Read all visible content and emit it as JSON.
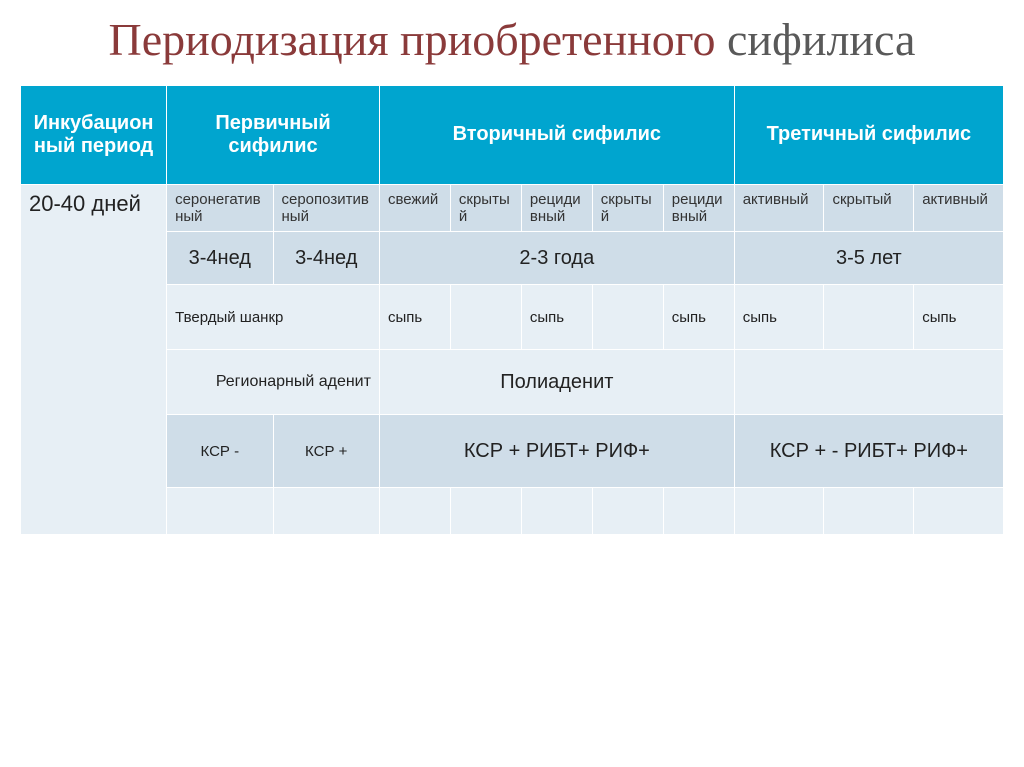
{
  "title": {
    "accent": "Периодизация приобретенного",
    "plain": "сифилиса"
  },
  "header": {
    "incubation": "Инкубационный период",
    "primary": "Первичный сифилис",
    "secondary": "Вторичный сифилис",
    "tertiary": "Третичный сифилис"
  },
  "row_days": {
    "incubation": "20-40 дней"
  },
  "subtypes": {
    "primary": [
      "серонегативный",
      "серопозитивный"
    ],
    "secondary": [
      "свежий",
      "скрытый",
      "рецидивный",
      "скрытый",
      "рецидивный"
    ],
    "tertiary": [
      "активный",
      "скрытый",
      "активный"
    ]
  },
  "durations": {
    "primary": [
      "3-4нед",
      "3-4нед"
    ],
    "secondary": "2-3 года",
    "tertiary": "3-5 лет"
  },
  "signs": {
    "primary": "Твердый шанкр",
    "secondary": [
      "сыпь",
      "",
      "сыпь",
      "",
      "сыпь"
    ],
    "tertiary": [
      "сыпь",
      "",
      "сыпь"
    ]
  },
  "adenitis": {
    "primary": "Регионарный аденит",
    "secondary": "Полиаденит",
    "tertiary": ""
  },
  "ksr": {
    "primary": [
      "КСР -",
      "КСР  +"
    ],
    "secondary": "КСР +        РИБТ+  РИФ+",
    "tertiary": "КСР + -  РИБТ+   РИФ+"
  },
  "colors": {
    "header_bg": "#00a5cf",
    "header_fg": "#ffffff",
    "band_dark": "#cfdde8",
    "band_light": "#e7eff5",
    "title_accent": "#8a3a3a",
    "title_plain": "#595959",
    "border": "#ffffff"
  },
  "typography": {
    "title_fontsize": 46,
    "header_fontsize": 20,
    "body_fontsize": 16,
    "subtype_fontsize": 15
  },
  "layout": {
    "slide_width": 1024,
    "slide_height": 767,
    "incubation_col_width": 140,
    "primary_col_width": 102,
    "secondary_col_width": 68,
    "tertiary_col_width": 86
  }
}
